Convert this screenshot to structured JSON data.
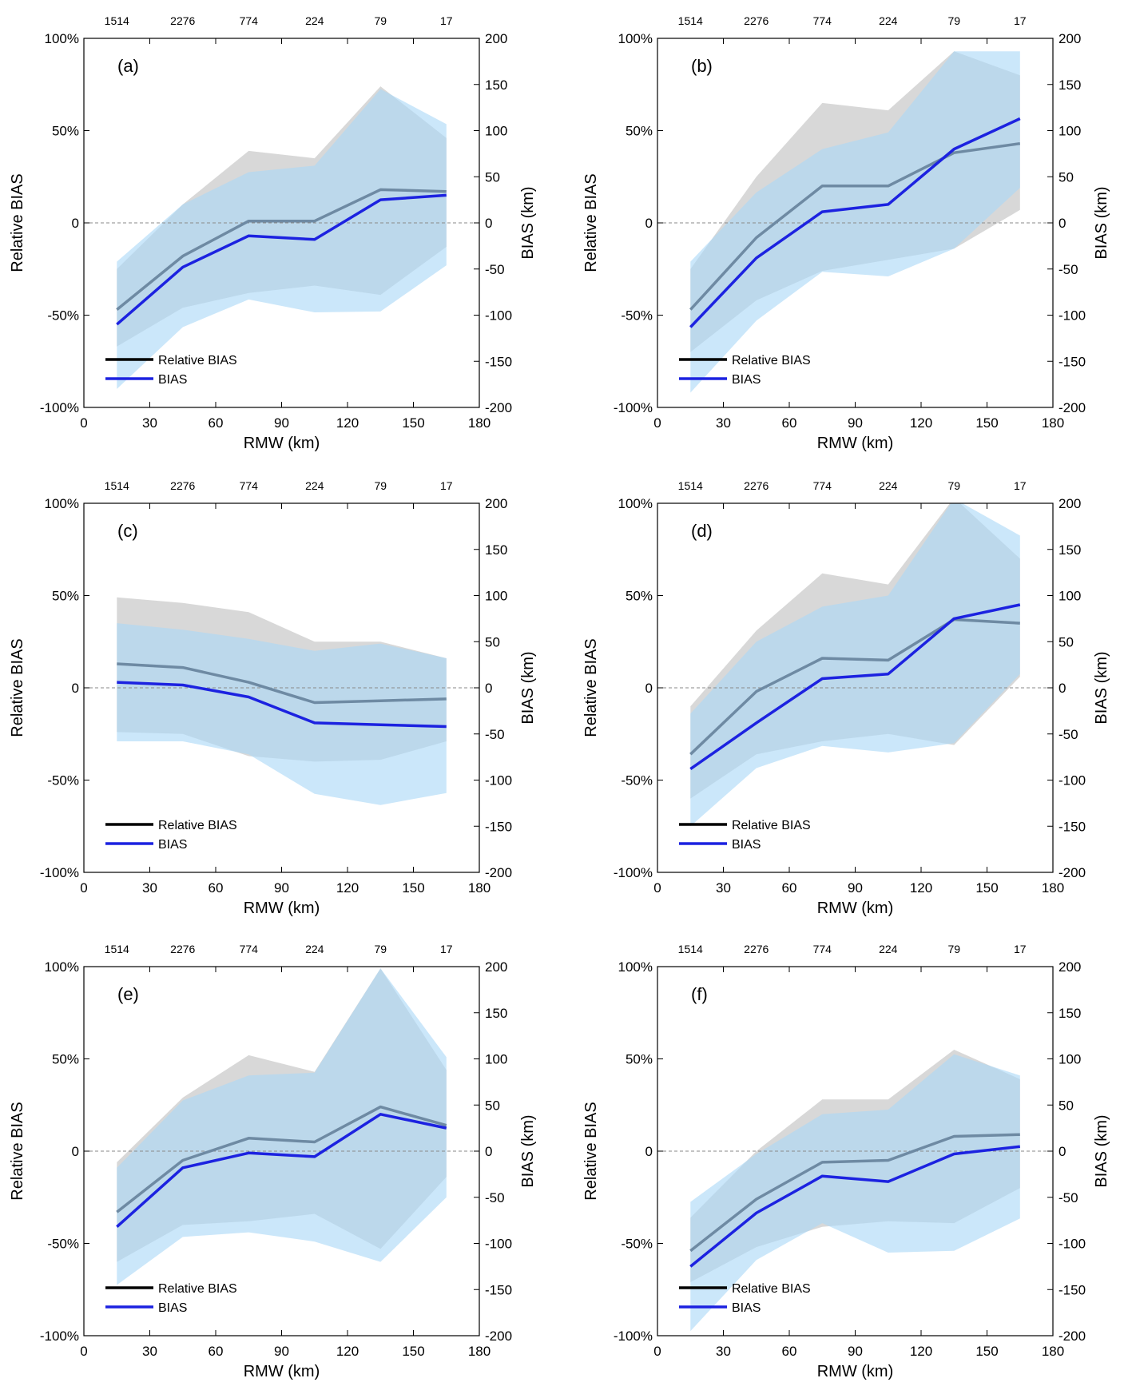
{
  "figure": {
    "xlabel": "RMW (km)",
    "ylabel_left": "Relative BIAS",
    "ylabel_right": "BIAS (km)",
    "legend": [
      "Relative BIAS",
      "BIAS"
    ],
    "colors": {
      "relative_line": "#6e8aa3",
      "relative_band": "#c8c8c8",
      "bias_line": "#1c22e0",
      "bias_band": "#abd8f7",
      "legend_black": "#000000"
    }
  },
  "chart_data": [
    {
      "type": "line",
      "panel": "(a)",
      "x": [
        15,
        45,
        75,
        105,
        135,
        165
      ],
      "x_ticks": [
        0,
        30,
        60,
        90,
        120,
        150,
        180
      ],
      "xlim": [
        0,
        180
      ],
      "top_counts": [
        "1514",
        "2276",
        "774",
        "224",
        "79",
        "17"
      ],
      "left_ticks": [
        "100%",
        "50%",
        "0",
        "-50%",
        "-100%"
      ],
      "right_ticks": [
        "200",
        "150",
        "100",
        "50",
        "0",
        "-50",
        "-100",
        "-150",
        "-200"
      ],
      "ylim_left": [
        -100,
        100
      ],
      "ylim_right": [
        -200,
        200
      ],
      "series": [
        {
          "name": "Relative BIAS",
          "axis": "left",
          "values": [
            -47,
            -18,
            1,
            1,
            18,
            17
          ],
          "band_upper": [
            -25,
            10,
            39,
            35,
            74,
            46
          ],
          "band_lower": [
            -67,
            -46,
            -38,
            -34,
            -39,
            -13
          ]
        },
        {
          "name": "BIAS",
          "axis": "right",
          "values": [
            -110,
            -48,
            -14,
            -18,
            25,
            30
          ],
          "band_upper": [
            -42,
            20,
            55,
            62,
            145,
            107
          ],
          "band_lower": [
            -180,
            -113,
            -83,
            -97,
            -96,
            -46
          ]
        }
      ]
    },
    {
      "type": "line",
      "panel": "(b)",
      "x": [
        15,
        45,
        75,
        105,
        135,
        165
      ],
      "x_ticks": [
        0,
        30,
        60,
        90,
        120,
        150,
        180
      ],
      "xlim": [
        0,
        180
      ],
      "top_counts": [
        "1514",
        "2276",
        "774",
        "224",
        "79",
        "17"
      ],
      "left_ticks": [
        "100%",
        "50%",
        "0",
        "-50%",
        "-100%"
      ],
      "right_ticks": [
        "200",
        "150",
        "100",
        "50",
        "0",
        "-50",
        "-100",
        "-150",
        "-200"
      ],
      "ylim_left": [
        -100,
        100
      ],
      "ylim_right": [
        -200,
        200
      ],
      "series": [
        {
          "name": "Relative BIAS",
          "axis": "left",
          "values": [
            -47,
            -8,
            20,
            20,
            38,
            43
          ],
          "band_upper": [
            -25,
            25,
            65,
            61,
            93,
            80
          ],
          "band_lower": [
            -70,
            -42,
            -26,
            -20,
            -14,
            7
          ]
        },
        {
          "name": "BIAS",
          "axis": "right",
          "values": [
            -113,
            -38,
            12,
            20,
            80,
            113
          ],
          "band_upper": [
            -42,
            33,
            80,
            98,
            186,
            186
          ],
          "band_lower": [
            -184,
            -106,
            -53,
            -58,
            -28,
            38
          ]
        }
      ]
    },
    {
      "type": "line",
      "panel": "(c)",
      "x": [
        15,
        45,
        75,
        105,
        135,
        165
      ],
      "x_ticks": [
        0,
        30,
        60,
        90,
        120,
        150,
        180
      ],
      "xlim": [
        0,
        180
      ],
      "top_counts": [
        "1514",
        "2276",
        "774",
        "224",
        "79",
        "17"
      ],
      "left_ticks": [
        "100%",
        "50%",
        "0",
        "-50%",
        "-100%"
      ],
      "right_ticks": [
        "200",
        "150",
        "100",
        "50",
        "0",
        "-50",
        "-100",
        "-150",
        "-200"
      ],
      "ylim_left": [
        -100,
        100
      ],
      "ylim_right": [
        -200,
        200
      ],
      "series": [
        {
          "name": "Relative BIAS",
          "axis": "left",
          "values": [
            13,
            11,
            3,
            -8,
            -7,
            -6
          ],
          "band_upper": [
            49,
            46,
            41,
            25,
            25,
            16
          ],
          "band_lower": [
            -24,
            -25,
            -37,
            -40,
            -39,
            -29
          ]
        },
        {
          "name": "BIAS",
          "axis": "right",
          "values": [
            6,
            3,
            -10,
            -38,
            -40,
            -42
          ],
          "band_upper": [
            70,
            63,
            53,
            40,
            48,
            32
          ],
          "band_lower": [
            -58,
            -58,
            -72,
            -115,
            -127,
            -114
          ]
        }
      ]
    },
    {
      "type": "line",
      "panel": "(d)",
      "x": [
        15,
        45,
        75,
        105,
        135,
        165
      ],
      "x_ticks": [
        0,
        30,
        60,
        90,
        120,
        150,
        180
      ],
      "xlim": [
        0,
        180
      ],
      "top_counts": [
        "1514",
        "2276",
        "774",
        "224",
        "79",
        "17"
      ],
      "left_ticks": [
        "100%",
        "50%",
        "0",
        "-50%",
        "-100%"
      ],
      "right_ticks": [
        "200",
        "150",
        "100",
        "50",
        "0",
        "-50",
        "-100",
        "-150",
        "-200"
      ],
      "ylim_left": [
        -100,
        100
      ],
      "ylim_right": [
        -200,
        200
      ],
      "series": [
        {
          "name": "Relative BIAS",
          "axis": "left",
          "values": [
            -36,
            -2,
            16,
            15,
            37,
            35
          ],
          "band_upper": [
            -10,
            31,
            62,
            56,
            103,
            70
          ],
          "band_lower": [
            -60,
            -36,
            -29,
            -25,
            -31,
            6
          ]
        },
        {
          "name": "BIAS",
          "axis": "right",
          "values": [
            -88,
            -38,
            10,
            15,
            75,
            90
          ],
          "band_upper": [
            -28,
            50,
            88,
            100,
            205,
            165
          ],
          "band_lower": [
            -150,
            -87,
            -63,
            -70,
            -60,
            15
          ]
        }
      ]
    },
    {
      "type": "line",
      "panel": "(e)",
      "x": [
        15,
        45,
        75,
        105,
        135,
        165
      ],
      "x_ticks": [
        0,
        30,
        60,
        90,
        120,
        150,
        180
      ],
      "xlim": [
        0,
        180
      ],
      "top_counts": [
        "1514",
        "2276",
        "774",
        "224",
        "79",
        "17"
      ],
      "left_ticks": [
        "100%",
        "50%",
        "0",
        "-50%",
        "-100%"
      ],
      "right_ticks": [
        "200",
        "150",
        "100",
        "50",
        "0",
        "-50",
        "-100",
        "-150",
        "-200"
      ],
      "ylim_left": [
        -100,
        100
      ],
      "ylim_right": [
        -200,
        200
      ],
      "series": [
        {
          "name": "Relative BIAS",
          "axis": "left",
          "values": [
            -33,
            -5,
            7,
            5,
            24,
            14
          ],
          "band_upper": [
            -6,
            29,
            52,
            43,
            99,
            44
          ],
          "band_lower": [
            -60,
            -40,
            -38,
            -34,
            -53,
            -14
          ]
        },
        {
          "name": "BIAS",
          "axis": "right",
          "values": [
            -82,
            -18,
            -2,
            -6,
            40,
            25
          ],
          "band_upper": [
            -18,
            55,
            82,
            85,
            198,
            102
          ],
          "band_lower": [
            -145,
            -93,
            -88,
            -98,
            -120,
            -50
          ]
        }
      ]
    },
    {
      "type": "line",
      "panel": "(f)",
      "x": [
        15,
        45,
        75,
        105,
        135,
        165
      ],
      "x_ticks": [
        0,
        30,
        60,
        90,
        120,
        150,
        180
      ],
      "xlim": [
        0,
        180
      ],
      "top_counts": [
        "1514",
        "2276",
        "774",
        "224",
        "79",
        "17"
      ],
      "left_ticks": [
        "100%",
        "50%",
        "0",
        "-50%",
        "-100%"
      ],
      "right_ticks": [
        "200",
        "150",
        "100",
        "50",
        "0",
        "-50",
        "-100",
        "-150",
        "-200"
      ],
      "ylim_left": [
        -100,
        100
      ],
      "ylim_right": [
        -200,
        200
      ],
      "series": [
        {
          "name": "Relative BIAS",
          "axis": "left",
          "values": [
            -54,
            -26,
            -6,
            -5,
            8,
            9
          ],
          "band_upper": [
            -36,
            0,
            28,
            28,
            55,
            39
          ],
          "band_lower": [
            -71,
            -52,
            -41,
            -38,
            -39,
            -20
          ]
        },
        {
          "name": "BIAS",
          "axis": "right",
          "values": [
            -125,
            -67,
            -27,
            -33,
            -3,
            5
          ],
          "band_upper": [
            -55,
            -3,
            40,
            45,
            105,
            82
          ],
          "band_lower": [
            -195,
            -118,
            -78,
            -110,
            -108,
            -73
          ]
        }
      ]
    }
  ]
}
